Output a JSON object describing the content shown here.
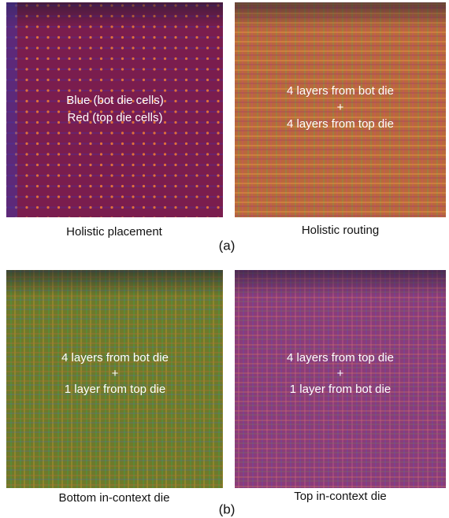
{
  "figure": {
    "panels": [
      {
        "overlay": [
          "Blue (bot die cells)",
          "Red (top die cells)"
        ],
        "caption": "Holistic placement"
      },
      {
        "overlay": [
          "4 layers from bot die",
          "+",
          "4 layers from top die"
        ],
        "caption": "Holistic routing"
      },
      {
        "overlay": [
          "4 layers from bot die",
          "+",
          "1 layer from top die"
        ],
        "caption": "Bottom in-context die"
      },
      {
        "overlay": [
          "4 layers from top die",
          "+",
          "1 layer from bot die"
        ],
        "caption": "Top in-context die"
      }
    ],
    "group_labels": [
      "(a)",
      "(b)"
    ]
  }
}
